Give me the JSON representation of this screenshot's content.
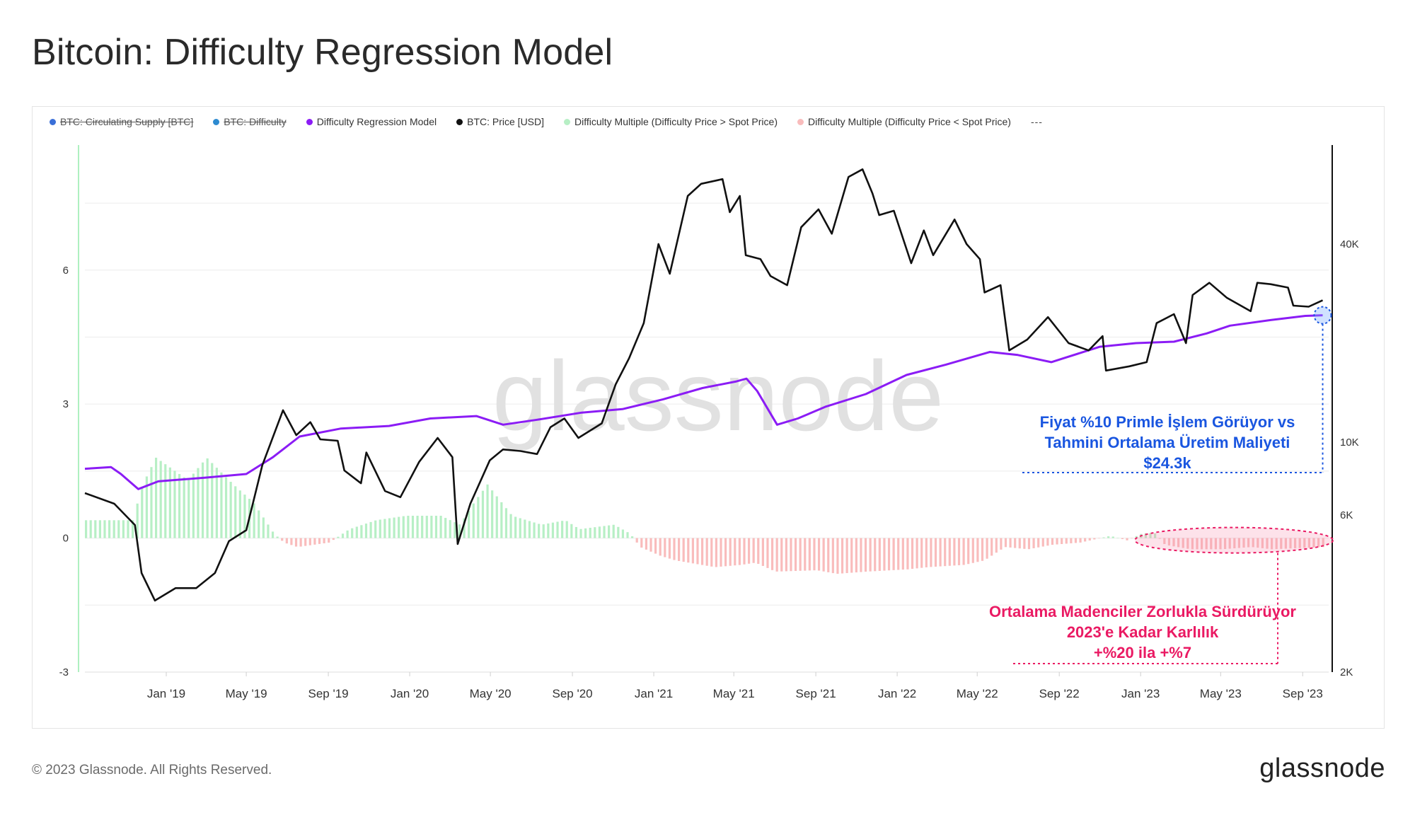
{
  "page": {
    "title": "Bitcoin: Difficulty Regression Model",
    "footer": "© 2023 Glassnode. All Rights Reserved.",
    "brand": "glassnode",
    "watermark": "glassnode"
  },
  "legend": {
    "items": [
      {
        "label": "BTC: Circulating Supply [BTC]",
        "color": "#3a6fd8",
        "disabled": true
      },
      {
        "label": "BTC: Difficulty",
        "color": "#2d8ad0",
        "disabled": true
      },
      {
        "label": "Difficulty Regression Model",
        "color": "#8b1cf5",
        "disabled": false
      },
      {
        "label": "BTC: Price [USD]",
        "color": "#111111",
        "disabled": false
      },
      {
        "label": "Difficulty Multiple (Difficulty Price > Spot Price)",
        "color": "#b7efc5",
        "disabled": false
      },
      {
        "label": "Difficulty Multiple (Difficulty Price < Spot Price)",
        "color": "#f9bcbc",
        "disabled": false
      }
    ],
    "more": "---"
  },
  "annotations": {
    "blue": {
      "line1": "Fiyat %10 Primle İşlem Görüyor vs",
      "line2": "Tahmini Ortalama Üretim Maliyeti",
      "line3": "$24.3k",
      "color": "#1a56e0"
    },
    "red": {
      "line1": "Ortalama Madenciler Zorlukla Sürdürüyor",
      "line2": "2023'e Kadar Karlılık",
      "line3": "+%20 ila +%7",
      "color": "#ea1a63"
    }
  },
  "chart_data": {
    "type": "line",
    "title": "Bitcoin: Difficulty Regression Model",
    "x_range": [
      "2018-09-01",
      "2023-10-10"
    ],
    "x_ticks": [
      "Jan '19",
      "May '19",
      "Sep '19",
      "Jan '20",
      "May '20",
      "Sep '20",
      "Jan '21",
      "May '21",
      "Sep '21",
      "Jan '22",
      "May '22",
      "Sep '22",
      "Jan '23",
      "May '23",
      "Sep '23"
    ],
    "x_tick_dates": [
      "2019-01-01",
      "2019-05-01",
      "2019-09-01",
      "2020-01-01",
      "2020-05-01",
      "2020-09-01",
      "2021-01-01",
      "2021-05-01",
      "2021-09-01",
      "2022-01-01",
      "2022-05-01",
      "2022-09-01",
      "2023-01-01",
      "2023-05-01",
      "2023-09-01"
    ],
    "y_left": {
      "ticks": [
        "6",
        "3",
        "0",
        "-3"
      ],
      "values": [
        6,
        3,
        0,
        -3
      ],
      "range": [
        -3,
        8.8
      ]
    },
    "y_right": {
      "scale": "log",
      "ticks": [
        "40K",
        "10K",
        "6K",
        "2K"
      ],
      "values": [
        40000,
        10000,
        6000,
        2000
      ],
      "range": [
        2000,
        80000
      ]
    },
    "series": [
      {
        "name": "BTC: Price [USD]",
        "axis": "right",
        "color": "#111111",
        "points": [
          [
            "2018-09-01",
            7000
          ],
          [
            "2018-10-15",
            6500
          ],
          [
            "2018-11-15",
            5600
          ],
          [
            "2018-11-25",
            4000
          ],
          [
            "2018-12-15",
            3300
          ],
          [
            "2019-01-15",
            3600
          ],
          [
            "2019-02-15",
            3600
          ],
          [
            "2019-03-15",
            4000
          ],
          [
            "2019-04-05",
            5000
          ],
          [
            "2019-05-01",
            5400
          ],
          [
            "2019-05-25",
            8500
          ],
          [
            "2019-06-25",
            12500
          ],
          [
            "2019-07-15",
            10500
          ],
          [
            "2019-08-05",
            11500
          ],
          [
            "2019-08-20",
            10200
          ],
          [
            "2019-09-15",
            10100
          ],
          [
            "2019-09-25",
            8200
          ],
          [
            "2019-10-20",
            7500
          ],
          [
            "2019-10-28",
            9300
          ],
          [
            "2019-11-25",
            7100
          ],
          [
            "2019-12-18",
            6800
          ],
          [
            "2020-01-15",
            8700
          ],
          [
            "2020-02-12",
            10300
          ],
          [
            "2020-03-05",
            9000
          ],
          [
            "2020-03-13",
            4900
          ],
          [
            "2020-04-01",
            6500
          ],
          [
            "2020-04-30",
            8800
          ],
          [
            "2020-05-20",
            9500
          ],
          [
            "2020-06-15",
            9400
          ],
          [
            "2020-07-10",
            9200
          ],
          [
            "2020-07-30",
            11100
          ],
          [
            "2020-08-20",
            11800
          ],
          [
            "2020-09-10",
            10300
          ],
          [
            "2020-10-15",
            11400
          ],
          [
            "2020-11-05",
            15000
          ],
          [
            "2020-11-25",
            18000
          ],
          [
            "2020-12-17",
            23000
          ],
          [
            "2021-01-08",
            40000
          ],
          [
            "2021-01-25",
            32500
          ],
          [
            "2021-02-21",
            56000
          ],
          [
            "2021-03-13",
            61000
          ],
          [
            "2021-04-14",
            63000
          ],
          [
            "2021-04-25",
            50000
          ],
          [
            "2021-05-10",
            56000
          ],
          [
            "2021-05-19",
            37000
          ],
          [
            "2021-06-10",
            36000
          ],
          [
            "2021-06-25",
            32000
          ],
          [
            "2021-07-20",
            30000
          ],
          [
            "2021-08-10",
            45000
          ],
          [
            "2021-09-05",
            51000
          ],
          [
            "2021-09-25",
            43000
          ],
          [
            "2021-10-20",
            64000
          ],
          [
            "2021-11-10",
            67500
          ],
          [
            "2021-11-25",
            57000
          ],
          [
            "2021-12-05",
            49000
          ],
          [
            "2021-12-27",
            50500
          ],
          [
            "2022-01-22",
            35000
          ],
          [
            "2022-02-10",
            44000
          ],
          [
            "2022-02-24",
            37000
          ],
          [
            "2022-03-28",
            47500
          ],
          [
            "2022-04-15",
            40000
          ],
          [
            "2022-05-05",
            36000
          ],
          [
            "2022-05-12",
            28500
          ],
          [
            "2022-06-05",
            30000
          ],
          [
            "2022-06-18",
            19000
          ],
          [
            "2022-07-15",
            20500
          ],
          [
            "2022-08-15",
            24000
          ],
          [
            "2022-09-15",
            20000
          ],
          [
            "2022-10-15",
            19000
          ],
          [
            "2022-11-05",
            21000
          ],
          [
            "2022-11-10",
            16500
          ],
          [
            "2022-12-15",
            17000
          ],
          [
            "2023-01-10",
            17500
          ],
          [
            "2023-01-25",
            23000
          ],
          [
            "2023-02-20",
            24500
          ],
          [
            "2023-03-10",
            20000
          ],
          [
            "2023-03-20",
            28000
          ],
          [
            "2023-04-14",
            30500
          ],
          [
            "2023-05-10",
            27500
          ],
          [
            "2023-06-15",
            25000
          ],
          [
            "2023-06-25",
            30500
          ],
          [
            "2023-07-15",
            30200
          ],
          [
            "2023-08-10",
            29500
          ],
          [
            "2023-08-18",
            26000
          ],
          [
            "2023-09-10",
            25800
          ],
          [
            "2023-10-01",
            27000
          ]
        ]
      },
      {
        "name": "Difficulty Regression Model",
        "axis": "right",
        "color": "#8b1cf5",
        "points": [
          [
            "2018-09-01",
            8300
          ],
          [
            "2018-10-10",
            8400
          ],
          [
            "2018-10-25",
            8000
          ],
          [
            "2018-11-20",
            7200
          ],
          [
            "2018-12-20",
            7600
          ],
          [
            "2019-03-01",
            7800
          ],
          [
            "2019-05-01",
            8000
          ],
          [
            "2019-06-10",
            9000
          ],
          [
            "2019-07-20",
            10400
          ],
          [
            "2019-09-20",
            11000
          ],
          [
            "2019-12-01",
            11200
          ],
          [
            "2020-02-01",
            11800
          ],
          [
            "2020-04-10",
            12000
          ],
          [
            "2020-05-20",
            11300
          ],
          [
            "2020-07-10",
            11700
          ],
          [
            "2020-09-15",
            12300
          ],
          [
            "2020-11-15",
            12600
          ],
          [
            "2021-01-15",
            13500
          ],
          [
            "2021-03-15",
            14600
          ],
          [
            "2021-05-05",
            15300
          ],
          [
            "2021-05-20",
            15600
          ],
          [
            "2021-06-05",
            14300
          ],
          [
            "2021-07-05",
            11300
          ],
          [
            "2021-08-05",
            11800
          ],
          [
            "2021-09-15",
            12800
          ],
          [
            "2021-11-15",
            14000
          ],
          [
            "2022-01-15",
            16000
          ],
          [
            "2022-03-15",
            17200
          ],
          [
            "2022-05-20",
            18800
          ],
          [
            "2022-07-01",
            18400
          ],
          [
            "2022-08-20",
            17500
          ],
          [
            "2022-11-01",
            19500
          ],
          [
            "2022-12-25",
            20000
          ],
          [
            "2023-02-20",
            20200
          ],
          [
            "2023-04-10",
            21400
          ],
          [
            "2023-05-15",
            22600
          ],
          [
            "2023-07-15",
            23500
          ],
          [
            "2023-09-05",
            24200
          ],
          [
            "2023-10-01",
            24300
          ]
        ]
      },
      {
        "name": "Difficulty Multiple",
        "axis": "left",
        "type": "bar",
        "color_positive": "#b7efc5",
        "color_negative": "#f9bcbc",
        "points": [
          [
            "2018-09-01",
            0.4
          ],
          [
            "2018-11-10",
            0.4
          ],
          [
            "2018-11-25",
            1.2
          ],
          [
            "2018-12-15",
            1.8
          ],
          [
            "2019-02-01",
            1.3
          ],
          [
            "2019-03-01",
            1.8
          ],
          [
            "2019-04-10",
            1.2
          ],
          [
            "2019-05-10",
            0.8
          ],
          [
            "2019-06-10",
            0.1
          ],
          [
            "2019-06-25",
            -0.1
          ],
          [
            "2019-07-15",
            -0.2
          ],
          [
            "2019-09-01",
            -0.1
          ],
          [
            "2019-10-01",
            0.2
          ],
          [
            "2019-11-10",
            0.4
          ],
          [
            "2019-12-25",
            0.5
          ],
          [
            "2020-02-15",
            0.5
          ],
          [
            "2020-03-15",
            0.3
          ],
          [
            "2020-04-05",
            0.8
          ],
          [
            "2020-04-25",
            1.2
          ],
          [
            "2020-06-01",
            0.5
          ],
          [
            "2020-07-15",
            0.3
          ],
          [
            "2020-08-20",
            0.4
          ],
          [
            "2020-09-10",
            0.2
          ],
          [
            "2020-11-01",
            0.3
          ],
          [
            "2020-11-25",
            0.1
          ],
          [
            "2020-12-10",
            -0.2
          ],
          [
            "2021-01-10",
            -0.4
          ],
          [
            "2021-02-01",
            -0.5
          ],
          [
            "2021-04-01",
            -0.65
          ],
          [
            "2021-05-10",
            -0.6
          ],
          [
            "2021-06-01",
            -0.55
          ],
          [
            "2021-07-01",
            -0.75
          ],
          [
            "2021-09-01",
            -0.72
          ],
          [
            "2021-10-01",
            -0.8
          ],
          [
            "2021-11-15",
            -0.75
          ],
          [
            "2022-01-15",
            -0.7
          ],
          [
            "2022-02-15",
            -0.65
          ],
          [
            "2022-04-10",
            -0.6
          ],
          [
            "2022-05-10",
            -0.5
          ],
          [
            "2022-06-10",
            -0.2
          ],
          [
            "2022-07-15",
            -0.25
          ],
          [
            "2022-08-20",
            -0.15
          ],
          [
            "2022-10-01",
            -0.1
          ],
          [
            "2022-11-15",
            0.05
          ],
          [
            "2022-12-10",
            -0.05
          ],
          [
            "2023-01-01",
            0.1
          ],
          [
            "2023-01-20",
            0.12
          ],
          [
            "2023-02-05",
            -0.15
          ],
          [
            "2023-03-15",
            -0.25
          ],
          [
            "2023-05-01",
            -0.25
          ],
          [
            "2023-06-15",
            -0.2
          ],
          [
            "2023-07-15",
            -0.25
          ],
          [
            "2023-10-01",
            -0.2
          ]
        ]
      }
    ]
  }
}
